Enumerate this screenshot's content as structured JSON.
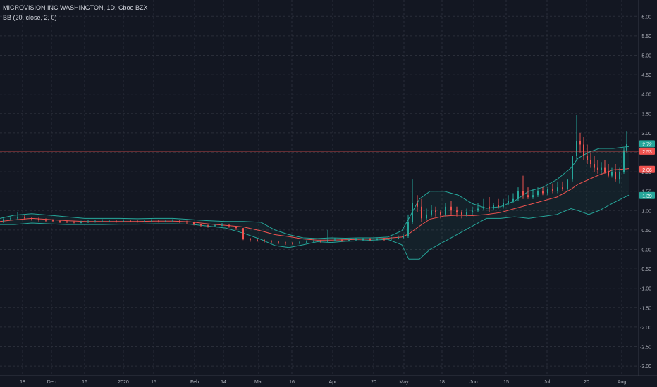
{
  "header": {
    "symbol_line": "MICROVISION INC WASHINGTON, 1D, Cboe BZX",
    "indicator_line": "BB (20, close, 2, 0)"
  },
  "chart_data": {
    "type": "candlestick",
    "title": "MICROVISION INC WASHINGTON, 1D, Cboe BZX",
    "indicator": "BB (20, close, 2, 0)",
    "ylim": [
      -3.1,
      6.2
    ],
    "y_ticks": [
      "6.00",
      "5.50",
      "5.00",
      "4.50",
      "4.00",
      "3.50",
      "3.00",
      "2.50",
      "2.00",
      "1.50",
      "1.00",
      "0.50",
      "0.00",
      "-0.50",
      "-1.00",
      "-1.50",
      "-2.00",
      "-2.50",
      "-3.00"
    ],
    "x_ticks": [
      "18",
      "Dec",
      "16",
      "2020",
      "15",
      "Feb",
      "14",
      "Mar",
      "16",
      "Apr",
      "20",
      "May",
      "18",
      "Jun",
      "15",
      "Jul",
      "20",
      "Aug"
    ],
    "grid": true,
    "legend": "top-left",
    "price_labels": [
      {
        "text": "2.72",
        "value": 2.72,
        "color": "#26a69a"
      },
      {
        "text": "2.53",
        "value": 2.53,
        "color": "#ef5350"
      },
      {
        "text": "2.06",
        "value": 2.06,
        "color": "#ef5350"
      },
      {
        "text": "1.39",
        "value": 1.39,
        "color": "#26a69a"
      }
    ],
    "horizontal_line": {
      "value": 2.53,
      "color": "#ef5350"
    },
    "colors": {
      "up": "#26a69a",
      "down": "#ef5350",
      "basis": "#ef5350",
      "bands": "#26a69a",
      "fill": "#26a69a"
    },
    "bands_x": [
      0,
      20,
      45,
      70,
      95,
      120,
      145,
      170,
      195,
      220,
      245,
      270,
      295,
      320,
      345,
      370,
      390,
      410,
      430,
      450,
      470,
      490,
      510,
      530,
      550,
      570,
      580,
      595,
      610,
      630,
      650,
      670,
      690,
      710,
      730,
      750,
      770,
      790,
      810,
      820,
      835,
      850,
      870,
      892
    ],
    "bb_upper": [
      0.8,
      0.88,
      0.92,
      0.88,
      0.84,
      0.8,
      0.8,
      0.8,
      0.79,
      0.8,
      0.8,
      0.77,
      0.74,
      0.72,
      0.72,
      0.7,
      0.5,
      0.38,
      0.3,
      0.28,
      0.3,
      0.29,
      0.3,
      0.3,
      0.32,
      0.48,
      0.8,
      1.3,
      1.5,
      1.5,
      1.4,
      1.18,
      1.06,
      1.1,
      1.25,
      1.5,
      1.6,
      1.8,
      2.1,
      2.35,
      2.5,
      2.6,
      2.6,
      2.65
    ],
    "bb_basis": [
      0.72,
      0.76,
      0.8,
      0.77,
      0.74,
      0.72,
      0.72,
      0.72,
      0.72,
      0.73,
      0.73,
      0.71,
      0.66,
      0.62,
      0.58,
      0.48,
      0.38,
      0.33,
      0.27,
      0.24,
      0.24,
      0.25,
      0.26,
      0.27,
      0.29,
      0.32,
      0.4,
      0.6,
      0.78,
      0.86,
      0.88,
      0.87,
      0.9,
      0.95,
      1.05,
      1.15,
      1.25,
      1.35,
      1.55,
      1.68,
      1.8,
      1.92,
      2.05,
      2.08
    ],
    "bb_lower": [
      0.64,
      0.64,
      0.68,
      0.66,
      0.64,
      0.64,
      0.64,
      0.65,
      0.65,
      0.66,
      0.66,
      0.65,
      0.6,
      0.55,
      0.42,
      0.26,
      0.1,
      0.05,
      0.12,
      0.2,
      0.18,
      0.21,
      0.22,
      0.24,
      0.26,
      0.12,
      -0.25,
      -0.25,
      0.0,
      0.2,
      0.4,
      0.6,
      0.8,
      0.8,
      0.84,
      0.8,
      0.85,
      0.9,
      1.05,
      1.0,
      0.9,
      1.0,
      1.2,
      1.4
    ],
    "candles_x": [
      5,
      15,
      25,
      35,
      45,
      55,
      65,
      75,
      85,
      95,
      105,
      115,
      125,
      135,
      145,
      155,
      165,
      175,
      185,
      195,
      205,
      215,
      225,
      235,
      245,
      255,
      265,
      275,
      285,
      295,
      305,
      315,
      325,
      335,
      345,
      355,
      365,
      375,
      385,
      395,
      405,
      415,
      425,
      435,
      445,
      455,
      465,
      475,
      485,
      495,
      505,
      515,
      525,
      535,
      545,
      555,
      565,
      572,
      579,
      585,
      592,
      598,
      605,
      612,
      618,
      625,
      632,
      640,
      648,
      655,
      662,
      670,
      678,
      686,
      694,
      700,
      707,
      714,
      721,
      728,
      735,
      742,
      749,
      756,
      763,
      770,
      777,
      784,
      791,
      798,
      805,
      812,
      818,
      823,
      828,
      833,
      838,
      843,
      848,
      853,
      858,
      863,
      868,
      873,
      879,
      885,
      889
    ],
    "candles_open": [
      0.72,
      0.78,
      0.8,
      0.82,
      0.8,
      0.78,
      0.76,
      0.75,
      0.73,
      0.72,
      0.71,
      0.7,
      0.7,
      0.72,
      0.72,
      0.73,
      0.73,
      0.72,
      0.74,
      0.73,
      0.72,
      0.73,
      0.74,
      0.72,
      0.73,
      0.74,
      0.72,
      0.7,
      0.66,
      0.62,
      0.6,
      0.62,
      0.63,
      0.6,
      0.55,
      0.28,
      0.25,
      0.24,
      0.22,
      0.2,
      0.18,
      0.16,
      0.15,
      0.18,
      0.2,
      0.22,
      0.2,
      0.24,
      0.25,
      0.23,
      0.24,
      0.26,
      0.26,
      0.25,
      0.27,
      0.26,
      0.28,
      0.3,
      0.35,
      0.7,
      1.2,
      1.1,
      0.8,
      0.9,
      1.0,
      0.95,
      0.9,
      1.1,
      1.0,
      0.95,
      0.9,
      0.95,
      1.0,
      1.05,
      1.1,
      1.05,
      1.15,
      1.1,
      1.2,
      1.25,
      1.3,
      1.5,
      1.4,
      1.35,
      1.4,
      1.5,
      1.45,
      1.55,
      1.5,
      1.6,
      1.55,
      1.8,
      2.4,
      2.8,
      2.7,
      2.4,
      2.3,
      2.2,
      2.1,
      2.05,
      2.1,
      2.0,
      1.9,
      2.0,
      1.8,
      2.0,
      2.55
    ],
    "candles_close": [
      0.78,
      0.8,
      0.82,
      0.8,
      0.78,
      0.76,
      0.75,
      0.73,
      0.72,
      0.71,
      0.7,
      0.7,
      0.72,
      0.72,
      0.73,
      0.73,
      0.72,
      0.74,
      0.73,
      0.72,
      0.73,
      0.74,
      0.72,
      0.73,
      0.74,
      0.72,
      0.7,
      0.66,
      0.62,
      0.6,
      0.62,
      0.63,
      0.6,
      0.55,
      0.28,
      0.25,
      0.24,
      0.22,
      0.2,
      0.18,
      0.16,
      0.15,
      0.18,
      0.2,
      0.22,
      0.2,
      0.24,
      0.25,
      0.23,
      0.24,
      0.26,
      0.26,
      0.25,
      0.27,
      0.26,
      0.28,
      0.3,
      0.35,
      0.7,
      1.2,
      1.1,
      0.8,
      0.9,
      1.0,
      0.95,
      0.9,
      1.1,
      1.0,
      0.95,
      0.9,
      0.95,
      1.0,
      1.05,
      1.1,
      1.05,
      1.15,
      1.1,
      1.2,
      1.25,
      1.3,
      1.5,
      1.4,
      1.35,
      1.4,
      1.5,
      1.45,
      1.55,
      1.5,
      1.6,
      1.55,
      1.8,
      2.4,
      2.8,
      2.7,
      2.4,
      2.3,
      2.2,
      2.1,
      2.05,
      2.1,
      2.0,
      1.9,
      2.0,
      1.8,
      2.0,
      2.55,
      2.72
    ],
    "candles_high": [
      0.84,
      0.86,
      0.95,
      0.88,
      0.84,
      0.82,
      0.8,
      0.78,
      0.76,
      0.75,
      0.74,
      0.74,
      0.76,
      0.76,
      0.78,
      0.77,
      0.77,
      0.78,
      0.77,
      0.76,
      0.77,
      0.78,
      0.76,
      0.77,
      0.78,
      0.76,
      0.74,
      0.7,
      0.66,
      0.64,
      0.66,
      0.68,
      0.64,
      0.58,
      0.4,
      0.3,
      0.28,
      0.26,
      0.24,
      0.22,
      0.2,
      0.19,
      0.22,
      0.24,
      0.26,
      0.24,
      0.5,
      0.3,
      0.27,
      0.28,
      0.3,
      0.3,
      0.3,
      0.31,
      0.3,
      0.32,
      0.36,
      0.4,
      0.9,
      1.8,
      1.4,
      1.3,
      1.05,
      1.15,
      1.1,
      1.0,
      1.2,
      1.25,
      1.1,
      1.0,
      1.05,
      1.1,
      1.2,
      1.3,
      1.35,
      1.2,
      1.3,
      1.3,
      1.4,
      1.45,
      1.6,
      1.9,
      1.6,
      1.55,
      1.6,
      1.6,
      1.6,
      1.7,
      1.75,
      1.75,
      1.7,
      2.2,
      3.45,
      3.0,
      2.9,
      2.7,
      2.5,
      2.4,
      2.3,
      2.25,
      2.3,
      2.2,
      2.1,
      2.2,
      2.1,
      2.6,
      3.05
    ],
    "candles_low": [
      0.68,
      0.74,
      0.76,
      0.76,
      0.74,
      0.72,
      0.7,
      0.7,
      0.68,
      0.68,
      0.67,
      0.67,
      0.68,
      0.69,
      0.7,
      0.7,
      0.69,
      0.7,
      0.7,
      0.69,
      0.7,
      0.7,
      0.69,
      0.7,
      0.71,
      0.68,
      0.66,
      0.62,
      0.58,
      0.56,
      0.58,
      0.6,
      0.56,
      0.5,
      0.24,
      0.2,
      0.2,
      0.18,
      0.16,
      0.14,
      0.12,
      0.12,
      0.14,
      0.16,
      0.18,
      0.17,
      0.18,
      0.21,
      0.2,
      0.21,
      0.22,
      0.22,
      0.22,
      0.23,
      0.22,
      0.24,
      0.26,
      0.28,
      0.3,
      0.65,
      0.95,
      0.7,
      0.75,
      0.85,
      0.85,
      0.8,
      0.85,
      0.9,
      0.85,
      0.8,
      0.85,
      0.9,
      0.95,
      1.0,
      0.95,
      1.0,
      1.05,
      1.05,
      1.15,
      1.2,
      1.25,
      1.3,
      1.3,
      1.3,
      1.35,
      1.4,
      1.4,
      1.45,
      1.45,
      1.5,
      1.5,
      1.75,
      2.3,
      2.5,
      2.3,
      2.2,
      2.1,
      2.0,
      1.95,
      1.95,
      1.95,
      1.85,
      1.85,
      1.75,
      1.7,
      1.95,
      2.5
    ]
  }
}
